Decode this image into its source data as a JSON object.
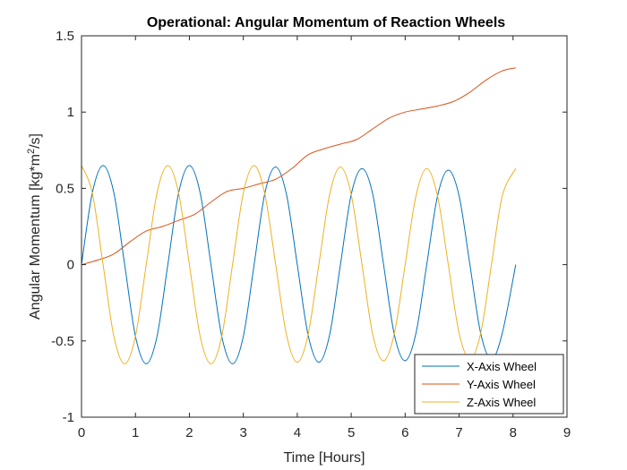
{
  "chart_data": {
    "type": "line",
    "title": "Operational: Angular Momentum of Reaction Wheels",
    "xlabel": "Time [Hours]",
    "ylabel": "Angular Momentum [kg*m",
    "ylabel_superscript": "2",
    "ylabel_suffix": "/s]",
    "xlim": [
      0,
      9
    ],
    "ylim": [
      -1,
      1.5
    ],
    "xticks": [
      0,
      1,
      2,
      3,
      4,
      5,
      6,
      7,
      8,
      9
    ],
    "xtick_labels": [
      "0",
      "1",
      "2",
      "3",
      "4",
      "5",
      "6",
      "7",
      "8",
      "9"
    ],
    "yticks": [
      -1,
      -0.5,
      0,
      0.5,
      1,
      1.5
    ],
    "ytick_labels": [
      "-1",
      "-0.5",
      "0",
      "0.5",
      "1",
      "1.5"
    ],
    "grid": false,
    "legend_position": "bottom-right",
    "series": [
      {
        "name": "X-Axis Wheel",
        "color": "#0072BD",
        "x": [
          0,
          0.2,
          0.4,
          0.6,
          0.8,
          1.0,
          1.2,
          1.4,
          1.6,
          1.8,
          2.0,
          2.2,
          2.4,
          2.6,
          2.8,
          3.0,
          3.2,
          3.4,
          3.6,
          3.8,
          4.0,
          4.2,
          4.4,
          4.6,
          4.8,
          5.0,
          5.2,
          5.4,
          5.6,
          5.8,
          6.0,
          6.2,
          6.4,
          6.6,
          6.8,
          7.0,
          7.2,
          7.4,
          7.6,
          7.8,
          8.05
        ],
        "y": [
          0.0,
          0.47,
          0.65,
          0.47,
          0.0,
          -0.47,
          -0.65,
          -0.47,
          0.0,
          0.47,
          0.65,
          0.47,
          0.0,
          -0.47,
          -0.65,
          -0.47,
          0.0,
          0.47,
          0.64,
          0.46,
          0.0,
          -0.46,
          -0.64,
          -0.46,
          0.0,
          0.46,
          0.63,
          0.46,
          0.0,
          -0.46,
          -0.63,
          -0.45,
          0.0,
          0.45,
          0.62,
          0.45,
          0.0,
          -0.45,
          -0.62,
          -0.45,
          0.0
        ]
      },
      {
        "name": "Y-Axis Wheel",
        "color": "#D95319",
        "x": [
          0,
          0.3,
          0.6,
          0.9,
          1.2,
          1.5,
          1.8,
          2.1,
          2.4,
          2.7,
          3.0,
          3.3,
          3.6,
          3.9,
          4.2,
          4.5,
          4.8,
          5.1,
          5.4,
          5.7,
          6.0,
          6.3,
          6.6,
          6.9,
          7.2,
          7.5,
          7.8,
          8.05
        ],
        "y": [
          0.0,
          0.03,
          0.07,
          0.15,
          0.22,
          0.25,
          0.29,
          0.33,
          0.41,
          0.48,
          0.5,
          0.53,
          0.56,
          0.63,
          0.72,
          0.76,
          0.79,
          0.82,
          0.89,
          0.96,
          1.0,
          1.02,
          1.04,
          1.07,
          1.13,
          1.21,
          1.27,
          1.29
        ]
      },
      {
        "name": "Z-Axis Wheel",
        "color": "#EDB120",
        "x": [
          0,
          0.2,
          0.4,
          0.6,
          0.8,
          1.0,
          1.2,
          1.4,
          1.6,
          1.8,
          2.0,
          2.2,
          2.4,
          2.6,
          2.8,
          3.0,
          3.2,
          3.4,
          3.6,
          3.8,
          4.0,
          4.2,
          4.4,
          4.6,
          4.8,
          5.0,
          5.2,
          5.4,
          5.6,
          5.8,
          6.0,
          6.2,
          6.4,
          6.6,
          6.8,
          7.0,
          7.2,
          7.4,
          7.6,
          7.8,
          8.05
        ],
        "y": [
          0.65,
          0.47,
          0.0,
          -0.47,
          -0.65,
          -0.47,
          0.0,
          0.47,
          0.65,
          0.47,
          0.0,
          -0.47,
          -0.65,
          -0.47,
          0.0,
          0.47,
          0.65,
          0.46,
          0.0,
          -0.46,
          -0.64,
          -0.46,
          0.0,
          0.46,
          0.64,
          0.46,
          0.0,
          -0.46,
          -0.63,
          -0.45,
          0.0,
          0.45,
          0.63,
          0.45,
          0.0,
          -0.45,
          -0.62,
          -0.45,
          0.0,
          0.45,
          0.63
        ]
      }
    ]
  }
}
